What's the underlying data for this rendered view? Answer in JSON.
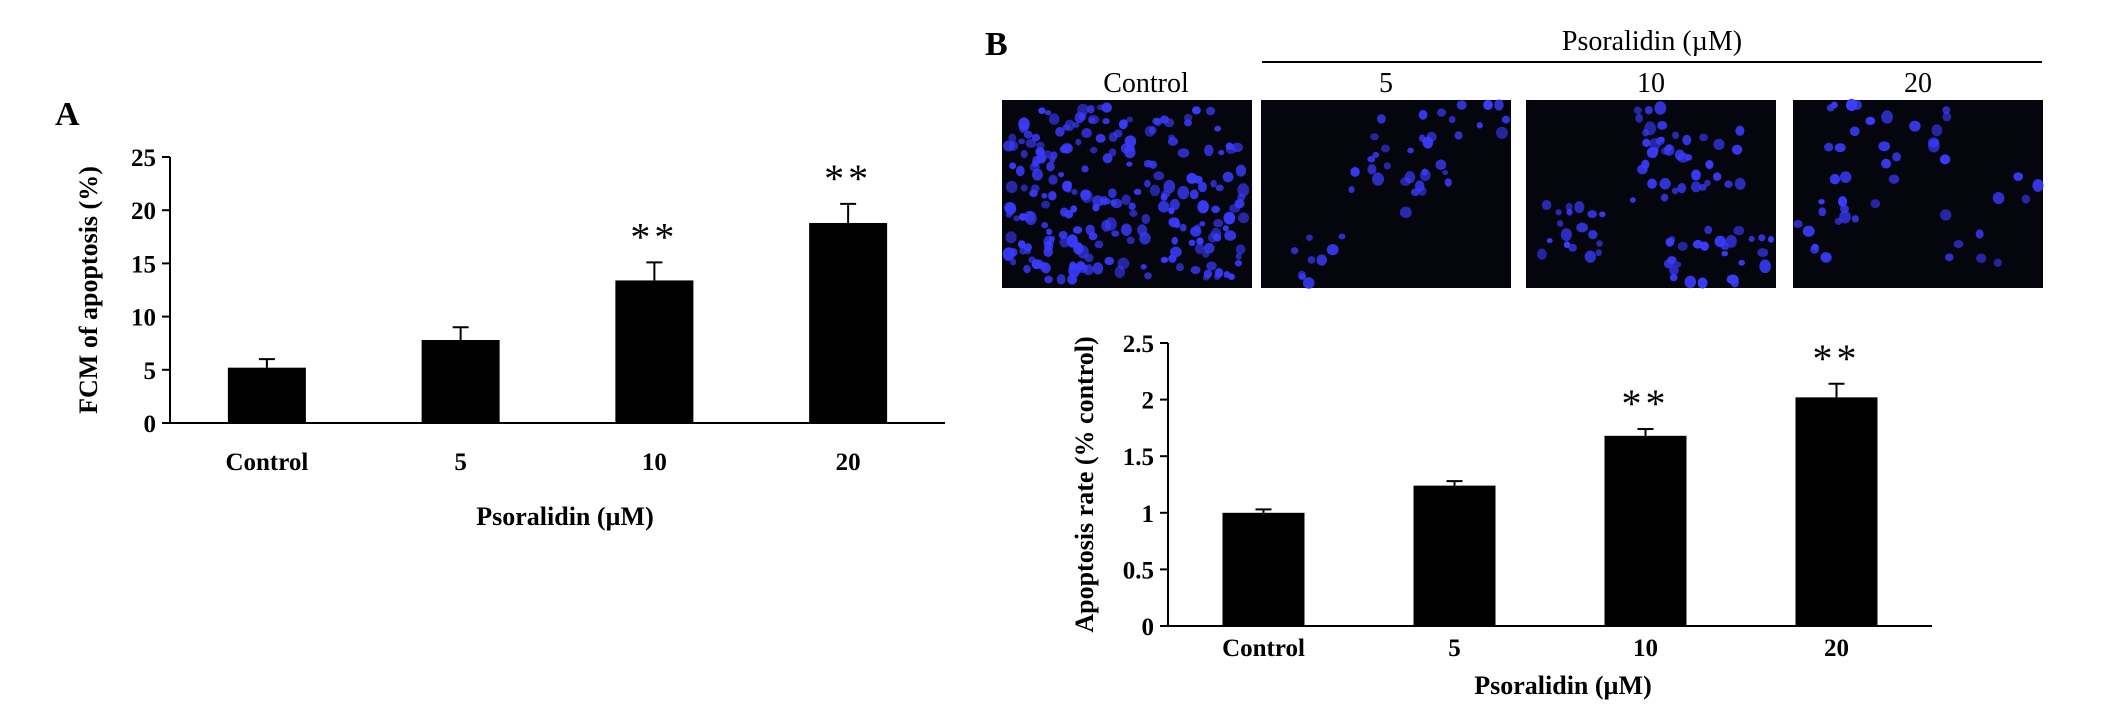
{
  "panel_a": {
    "label": "A",
    "chart_data": {
      "type": "bar",
      "categories": [
        "Control",
        "5",
        "10",
        "20"
      ],
      "values": [
        5.2,
        7.8,
        13.4,
        18.8
      ],
      "errors": [
        0.8,
        1.2,
        1.7,
        1.8
      ],
      "significance": [
        "",
        "",
        "**",
        "**"
      ],
      "ylabel": "FCM of apoptosis (%)",
      "xlabel": "Psoralidin (µM)",
      "ylim": [
        0,
        25
      ],
      "yticks": [
        "0",
        "5",
        "10",
        "15",
        "20",
        "25"
      ],
      "grid": false,
      "color": "#000000"
    }
  },
  "panel_b": {
    "label": "B",
    "images": {
      "group_label": "Psoralidin (µM)",
      "labels": [
        "Control",
        "5",
        "10",
        "20"
      ],
      "background": "#05050e",
      "nucleus_color": "#3a3cff"
    },
    "chart_data": {
      "type": "bar",
      "categories": [
        "Control",
        "5",
        "10",
        "20"
      ],
      "values": [
        1.0,
        1.24,
        1.68,
        2.02
      ],
      "errors": [
        0.03,
        0.04,
        0.06,
        0.12
      ],
      "significance": [
        "",
        "",
        "**",
        "**"
      ],
      "ylabel": "Apoptosis rate (% control)",
      "xlabel": "Psoralidin (µM)",
      "ylim": [
        0,
        2.5
      ],
      "yticks": [
        "0",
        "0.5",
        "1",
        "1.5",
        "2",
        "2.5"
      ],
      "grid": false,
      "color": "#000000"
    }
  }
}
